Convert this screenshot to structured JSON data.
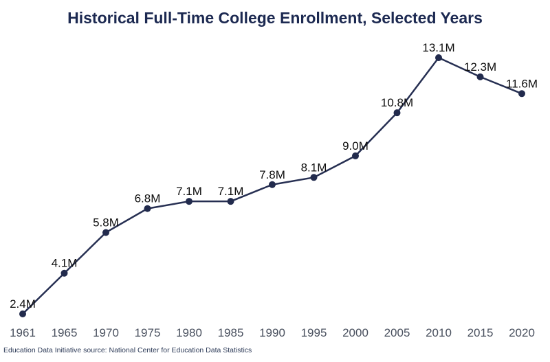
{
  "title": "Historical Full-Time College Enrollment, Selected Years",
  "source": "Education Data Initiative source: National Center for Education Data Statistics",
  "colors": {
    "background": "#ffffff",
    "line": "#262f52",
    "dot": "#222b4d",
    "title": "#1c2951",
    "data_label": "#0e0e0e",
    "axis_label": "#4a515f",
    "source_text": "#2c3a57"
  },
  "chart_data": {
    "type": "line",
    "title": "Historical Full-Time College Enrollment, Selected Years",
    "categories": [
      "1961",
      "1965",
      "1970",
      "1975",
      "1980",
      "1985",
      "1990",
      "1995",
      "2000",
      "2005",
      "2010",
      "2015",
      "2020"
    ],
    "values": [
      2.4,
      4.1,
      5.8,
      6.8,
      7.1,
      7.1,
      7.8,
      8.1,
      9.0,
      10.8,
      13.1,
      12.3,
      11.6
    ],
    "labels": [
      "2.4M",
      "4.1M",
      "5.8M",
      "6.8M",
      "7.1M",
      "7.1M",
      "7.8M",
      "8.1M",
      "9.0M",
      "10.8M",
      "13.1M",
      "12.3M",
      "11.6M"
    ],
    "xlabel": "",
    "ylabel": "",
    "ylim": [
      2.4,
      13.1
    ],
    "grid": false,
    "legend": false,
    "marker": "circle",
    "units": "millions of students"
  }
}
